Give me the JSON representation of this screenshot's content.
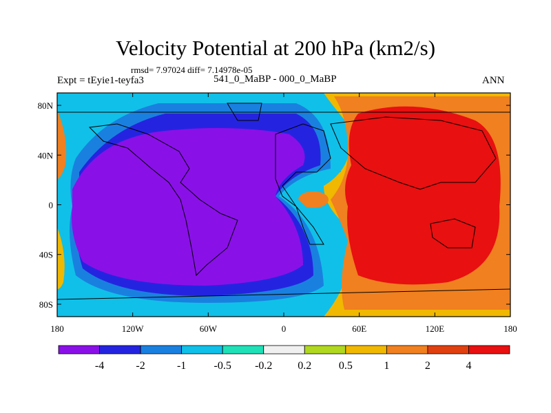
{
  "chart_data": {
    "type": "heatmap",
    "title": "Velocity Potential at 200 hPa (km2/s)",
    "stats_line": "rmsd= 7.97024 diff= 7.14978e-05",
    "left_label": "Expt = tEyie1-teyfa3",
    "center_label": "541_0_MaBP - 000_0_MaBP",
    "right_label": "ANN",
    "x_ticks": [
      "180",
      "120W",
      "60W",
      "0",
      "60E",
      "120E",
      "180"
    ],
    "y_ticks": [
      "80N",
      "40N",
      "0",
      "40S",
      "80S"
    ],
    "xlim": [
      -180,
      180
    ],
    "ylim": [
      -90,
      90
    ],
    "colorbar": {
      "levels": [
        "-4",
        "-2",
        "-1",
        "-0.5",
        "-0.2",
        "0.2",
        "0.5",
        "1",
        "2",
        "4"
      ],
      "colors": [
        "#8a10e8",
        "#2424e0",
        "#1a80e0",
        "#10c0e8",
        "#20e0b8",
        "#f0f0f0",
        "#b0d820",
        "#f0b800",
        "#f08020",
        "#e04010",
        "#e81010"
      ]
    },
    "field_description": {
      "negative_center_lon": -70,
      "positive_center_lon": 110,
      "min_class": "< -4",
      "max_class": "> 4"
    }
  }
}
